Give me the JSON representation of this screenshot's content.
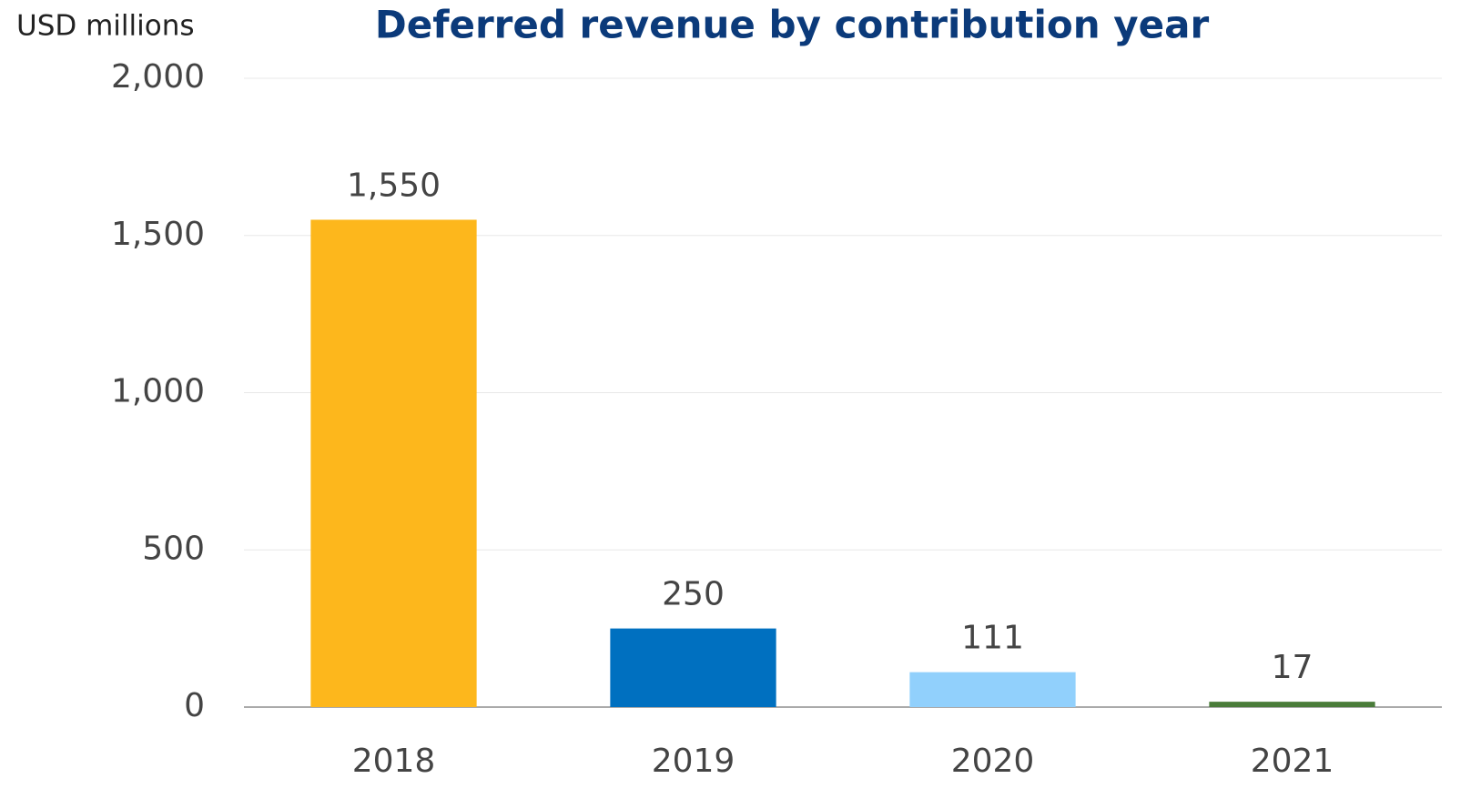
{
  "chart_data": {
    "type": "bar",
    "title": "Deferred revenue by contribution year",
    "y_axis_label": "USD millions",
    "categories": [
      "2018",
      "2019",
      "2020",
      "2021"
    ],
    "values": [
      1550,
      250,
      111,
      17
    ],
    "value_labels": [
      "1,550",
      "250",
      "111",
      "17"
    ],
    "colors": [
      "#fdb71c",
      "#0070c0",
      "#91d0fc",
      "#4a7c3a"
    ],
    "ylim": [
      0,
      2000
    ],
    "yticks": [
      0,
      500,
      {
        "value": 1000,
        "label": "1,000"
      },
      {
        "value": 1500,
        "label": "1,500"
      },
      {
        "value": 2000,
        "label": "2,000"
      }
    ],
    "grid": true
  }
}
